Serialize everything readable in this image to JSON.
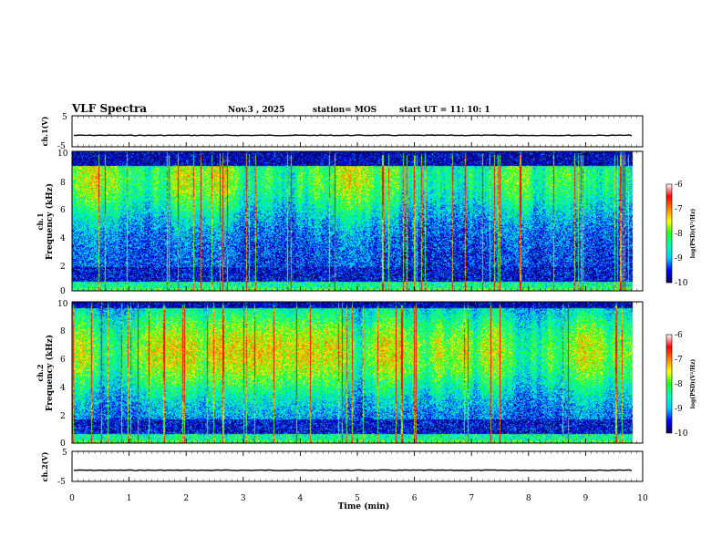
{
  "header": {
    "title": "VLF Spectra",
    "date": "Nov.3 , 2025",
    "station": "station= MOS",
    "start": "start UT = 11: 10: 1"
  },
  "colors": {
    "background": "#ffffff",
    "axis": "#000000",
    "colormap": [
      "#000060",
      "#0000ff",
      "#00c8ff",
      "#00ffb4",
      "#20ff20",
      "#ffff00",
      "#ff8000",
      "#ff0000",
      "#ffffff"
    ]
  },
  "chart_data": [
    {
      "type": "line",
      "name": "ch1-waveform",
      "ylabel": "ch.1(V)",
      "ylim": [
        -5,
        5
      ],
      "yticks": [
        "5",
        "-5"
      ],
      "xlim": [
        0,
        10
      ],
      "trace_level": -1.3
    },
    {
      "type": "heatmap",
      "name": "ch1-spectrogram",
      "ylabel": "ch.1\nFrequency (kHz)",
      "ylabel_line1": "ch.1",
      "ylabel_line2": "Frequency (kHz)",
      "ylim": [
        0,
        10
      ],
      "yticks": [
        "0",
        "2",
        "4",
        "6",
        "8",
        "10"
      ],
      "xlim": [
        0,
        10
      ],
      "data_end_min": 9.83,
      "band_kHz": [
        1.7,
        9.0
      ],
      "peak_kHz": 8.2,
      "colorbar": {
        "label": "log(PSD)(V²/Hz)",
        "range": [
          -10,
          -6
        ],
        "ticks": [
          "-6",
          "-7",
          "-8",
          "-9",
          "-10"
        ]
      }
    },
    {
      "type": "heatmap",
      "name": "ch2-spectrogram",
      "ylabel": "ch.2\nFrequency (kHz)",
      "ylabel_line1": "ch.2",
      "ylabel_line2": "Frequency (kHz)",
      "ylim": [
        0,
        10
      ],
      "yticks": [
        "0",
        "2",
        "4",
        "6",
        "8",
        "10"
      ],
      "xlim": [
        0,
        10
      ],
      "data_end_min": 9.83,
      "band_kHz": [
        1.7,
        9.6
      ],
      "peak_kHz": 6.5,
      "colorbar": {
        "label": "log(PSD)(V²/Hz)",
        "range": [
          -10,
          -6
        ],
        "ticks": [
          "-6",
          "-7",
          "-8",
          "-9",
          "-10"
        ]
      }
    },
    {
      "type": "line",
      "name": "ch2-waveform",
      "ylabel": "ch.2(V)",
      "ylim": [
        -5,
        5
      ],
      "yticks": [
        "5",
        "-5"
      ],
      "xlim": [
        0,
        10
      ],
      "trace_level": -1.3
    }
  ],
  "xaxis": {
    "label": "Time (min)",
    "ticks": [
      "0",
      "1",
      "2",
      "3",
      "4",
      "5",
      "6",
      "7",
      "8",
      "9",
      "10"
    ]
  }
}
